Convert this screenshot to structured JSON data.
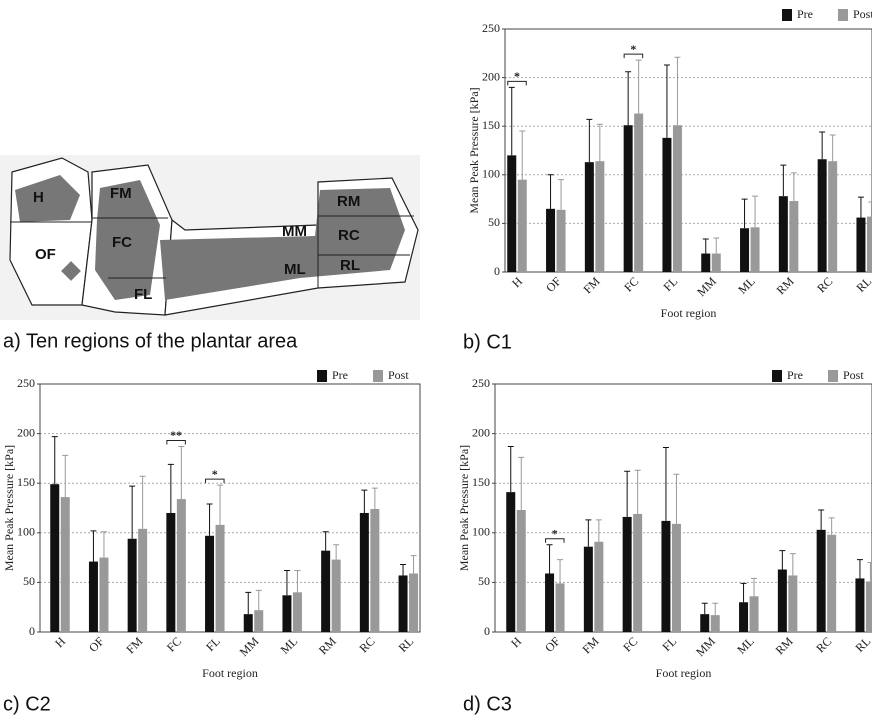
{
  "diagram": {
    "caption": "a) Ten regions of the plantar area",
    "regions": [
      "H",
      "OF",
      "FM",
      "FC",
      "FL",
      "MM",
      "ML",
      "RM",
      "RC",
      "RL"
    ]
  },
  "chart_data": [
    {
      "type": "bar",
      "caption": "b) C1",
      "y_label": "Mean Peak Pressure [kPa]",
      "x_label": "Foot region",
      "categories": [
        "H",
        "OF",
        "FM",
        "FC",
        "FL",
        "MM",
        "ML",
        "RM",
        "RC",
        "RL"
      ],
      "series": [
        {
          "name": "Pre",
          "color": "#111111",
          "values": [
            120,
            65,
            113,
            151,
            138,
            19,
            45,
            78,
            116,
            56
          ],
          "errors": [
            70,
            35,
            44,
            55,
            75,
            15,
            30,
            32,
            28,
            21
          ]
        },
        {
          "name": "Post",
          "color": "#999999",
          "values": [
            95,
            64,
            114,
            163,
            151,
            19,
            46,
            73,
            114,
            57
          ],
          "errors": [
            50,
            31,
            38,
            55,
            70,
            16,
            32,
            29,
            27,
            15
          ]
        }
      ],
      "annotations": [
        {
          "category": "H",
          "text": "*"
        },
        {
          "category": "FC",
          "text": "*"
        }
      ],
      "ylim": [
        0,
        250
      ],
      "yticks": [
        0,
        50,
        100,
        150,
        200,
        250
      ],
      "grid": true,
      "legend": "top-right"
    },
    {
      "type": "bar",
      "caption": "c) C2",
      "y_label": "Mean Peak Pressure [kPa]",
      "x_label": "Foot region",
      "categories": [
        "H",
        "OF",
        "FM",
        "FC",
        "FL",
        "MM",
        "ML",
        "RM",
        "RC",
        "RL"
      ],
      "series": [
        {
          "name": "Pre",
          "color": "#111111",
          "values": [
            149,
            71,
            94,
            120,
            97,
            18,
            37,
            82,
            120,
            57
          ],
          "errors": [
            48,
            31,
            53,
            49,
            32,
            22,
            25,
            19,
            23,
            11
          ]
        },
        {
          "name": "Post",
          "color": "#999999",
          "values": [
            136,
            75,
            104,
            134,
            108,
            22,
            40,
            73,
            124,
            59
          ],
          "errors": [
            42,
            26,
            53,
            53,
            40,
            20,
            22,
            15,
            21,
            18
          ]
        }
      ],
      "annotations": [
        {
          "category": "FC",
          "text": "**"
        },
        {
          "category": "FL",
          "text": "*"
        }
      ],
      "ylim": [
        0,
        250
      ],
      "yticks": [
        0,
        50,
        100,
        150,
        200,
        250
      ],
      "grid": true,
      "legend": "top-right"
    },
    {
      "type": "bar",
      "caption": "d) C3",
      "y_label": "Mean Peak Pressure [kPa]",
      "x_label": "Foot region",
      "categories": [
        "H",
        "OF",
        "FM",
        "FC",
        "FL",
        "MM",
        "ML",
        "RM",
        "RC",
        "RL"
      ],
      "series": [
        {
          "name": "Pre",
          "color": "#111111",
          "values": [
            141,
            59,
            86,
            116,
            112,
            18,
            30,
            63,
            103,
            54
          ],
          "errors": [
            46,
            29,
            27,
            46,
            74,
            11,
            19,
            19,
            20,
            19
          ]
        },
        {
          "name": "Post",
          "color": "#999999",
          "values": [
            123,
            49,
            91,
            119,
            109,
            17,
            36,
            57,
            98,
            51
          ],
          "errors": [
            53,
            24,
            22,
            44,
            50,
            12,
            18,
            22,
            17,
            19
          ]
        }
      ],
      "annotations": [
        {
          "category": "OF",
          "text": "*"
        }
      ],
      "ylim": [
        0,
        250
      ],
      "yticks": [
        0,
        50,
        100,
        150,
        200,
        250
      ],
      "grid": true,
      "legend": "top-right"
    }
  ]
}
